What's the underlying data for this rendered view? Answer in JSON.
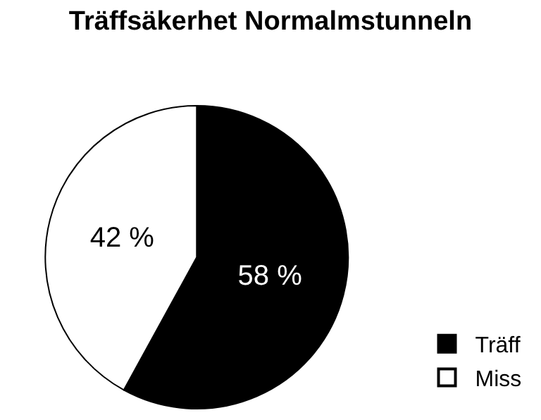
{
  "chart_data": {
    "type": "pie",
    "title": "Träffsäkerhet Normalmstunneln",
    "categories": [
      "Träff",
      "Miss"
    ],
    "values": [
      58,
      42
    ],
    "colors": [
      "#000000",
      "#ffffff"
    ],
    "value_labels": [
      "58 %",
      "42 %"
    ],
    "legend": "bottom right"
  }
}
